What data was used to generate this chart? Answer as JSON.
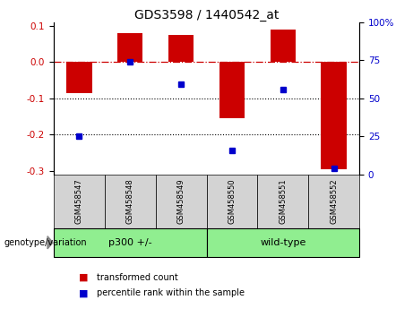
{
  "title": "GDS3598 / 1440542_at",
  "samples": [
    "GSM458547",
    "GSM458548",
    "GSM458549",
    "GSM458550",
    "GSM458551",
    "GSM458552"
  ],
  "red_bars": [
    -0.085,
    0.08,
    0.075,
    -0.155,
    0.09,
    -0.295
  ],
  "blue_dots_y": [
    -0.205,
    0.0,
    -0.06,
    -0.245,
    -0.075,
    -0.293
  ],
  "ylim_left": [
    -0.31,
    0.11
  ],
  "ylim_right": [
    0,
    100
  ],
  "group_bg_color": "#90EE90",
  "sample_bg_color": "#d3d3d3",
  "bar_color": "#cc0000",
  "dot_color": "#0000cc",
  "zero_line_color": "#cc0000",
  "dotted_line_color": "#000000",
  "legend_red_label": "transformed count",
  "legend_blue_label": "percentile rank within the sample",
  "genotype_label": "genotype/variation",
  "left_yticks": [
    -0.3,
    -0.2,
    -0.1,
    0.0,
    0.1
  ],
  "right_yticks": [
    0,
    25,
    50,
    75,
    100
  ],
  "bar_width": 0.5,
  "title_fontsize": 10
}
